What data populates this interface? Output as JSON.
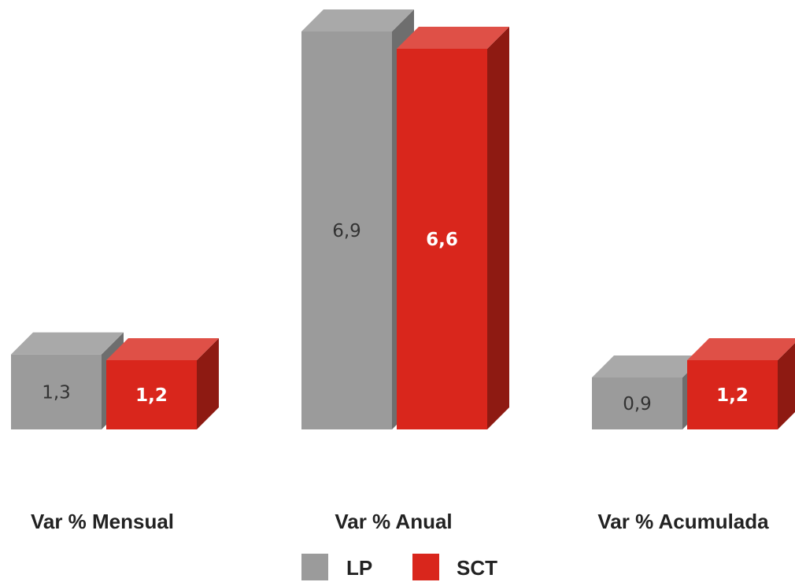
{
  "chart_data": {
    "type": "bar",
    "style": "3d-column",
    "categories": [
      "Var % Mensual",
      "Var % Anual",
      "Var % Acumulada"
    ],
    "series": [
      {
        "name": "LP",
        "values": [
          1.3,
          6.9,
          0.9
        ],
        "labels": [
          "1,3",
          "6,9",
          "0,9"
        ],
        "color": "#9b9b9b",
        "side_color": "#6e6e6e",
        "top_color": "#a9a9a9",
        "label_color": "#333333"
      },
      {
        "name": "SCT",
        "values": [
          1.2,
          6.6,
          1.2
        ],
        "labels": [
          "1,2",
          "6,6",
          "1,2"
        ],
        "color": "#d9261c",
        "side_color": "#8e1a12",
        "top_color": "#df5047",
        "label_color": "#ffffff"
      }
    ],
    "ylim": [
      0,
      6.9
    ],
    "grid": false,
    "legend": "bottom-center",
    "title": "",
    "xlabel": "",
    "ylabel": ""
  }
}
